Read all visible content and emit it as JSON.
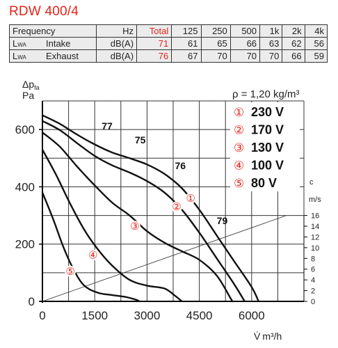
{
  "title": "RDW 400/4",
  "table": {
    "header": [
      "Frequency",
      "Hz",
      "Total",
      "125",
      "250",
      "500",
      "1k",
      "2k",
      "4k"
    ],
    "rows": [
      {
        "symbol": "L",
        "symbol_sub": "WA",
        "label": "Intake",
        "unit": "dB(A)",
        "total": "71",
        "values": [
          "61",
          "65",
          "66",
          "63",
          "62",
          "56"
        ]
      },
      {
        "symbol": "L",
        "symbol_sub": "WA",
        "label": "Exhaust",
        "unit": "dB(A)",
        "total": "76",
        "values": [
          "67",
          "70",
          "70",
          "70",
          "66",
          "59"
        ]
      }
    ]
  },
  "colors": {
    "accent": "#e2231a",
    "grid": "#333333",
    "curve": "#111111",
    "table_bg": "#ececec"
  },
  "chart_data": {
    "type": "line",
    "ylabel_symbol": "Δp",
    "ylabel_sub": "fa",
    "ylabel_unit": "Pa",
    "xlabel_symbol": "V̇",
    "xlabel_unit": "m³/h",
    "density": "ρ = 1,20 kg/m³",
    "xlim": [
      0,
      7500
    ],
    "ylim": [
      0,
      700
    ],
    "x_ticks": [
      0,
      1500,
      3000,
      4500,
      6000
    ],
    "y_ticks": [
      0,
      200,
      400,
      600
    ],
    "grid": true,
    "velocity_axis": {
      "label": "c",
      "unit": "m/s",
      "ticks": [
        0,
        2,
        4,
        6,
        8,
        10,
        12,
        14,
        16
      ]
    },
    "legend_position": "top-right",
    "series": [
      {
        "name": "230 V",
        "marker": "①",
        "points": [
          [
            0,
            650
          ],
          [
            500,
            620
          ],
          [
            1000,
            582
          ],
          [
            1500,
            548
          ],
          [
            2000,
            520
          ],
          [
            2500,
            500
          ],
          [
            3000,
            478
          ],
          [
            3500,
            445
          ],
          [
            4000,
            395
          ],
          [
            4500,
            320
          ],
          [
            5000,
            230
          ],
          [
            5500,
            140
          ],
          [
            6000,
            50
          ],
          [
            6200,
            0
          ]
        ]
      },
      {
        "name": "170 V",
        "marker": "②",
        "points": [
          [
            0,
            630
          ],
          [
            500,
            598
          ],
          [
            1000,
            552
          ],
          [
            1500,
            508
          ],
          [
            2000,
            475
          ],
          [
            2500,
            450
          ],
          [
            3000,
            420
          ],
          [
            3500,
            380
          ],
          [
            4000,
            320
          ],
          [
            4500,
            240
          ],
          [
            5000,
            150
          ],
          [
            5500,
            60
          ],
          [
            5800,
            0
          ]
        ]
      },
      {
        "name": "130 V",
        "marker": "③",
        "points": [
          [
            0,
            590
          ],
          [
            500,
            540
          ],
          [
            1000,
            470
          ],
          [
            1500,
            405
          ],
          [
            2000,
            345
          ],
          [
            2500,
            300
          ],
          [
            3000,
            245
          ],
          [
            3500,
            205
          ],
          [
            4000,
            175
          ],
          [
            4500,
            145
          ],
          [
            5000,
            90
          ],
          [
            5400,
            10
          ],
          [
            5450,
            0
          ]
        ]
      },
      {
        "name": "100 V",
        "marker": "④",
        "points": [
          [
            0,
            530
          ],
          [
            400,
            440
          ],
          [
            800,
            340
          ],
          [
            1200,
            250
          ],
          [
            1600,
            180
          ],
          [
            2000,
            125
          ],
          [
            2500,
            75
          ],
          [
            3000,
            55
          ],
          [
            3500,
            45
          ],
          [
            3800,
            20
          ],
          [
            4000,
            0
          ]
        ]
      },
      {
        "name": "80 V",
        "marker": "⑤",
        "points": [
          [
            0,
            380
          ],
          [
            300,
            290
          ],
          [
            600,
            190
          ],
          [
            900,
            110
          ],
          [
            1200,
            55
          ],
          [
            1600,
            30
          ],
          [
            2000,
            22
          ],
          [
            2400,
            15
          ],
          [
            2700,
            5
          ],
          [
            2780,
            0
          ]
        ]
      }
    ],
    "sound_labels": [
      {
        "text": "77",
        "x": 1700,
        "y": 600
      },
      {
        "text": "75",
        "x": 2650,
        "y": 552
      },
      {
        "text": "76",
        "x": 3800,
        "y": 462
      },
      {
        "text": "79",
        "x": 5000,
        "y": 270
      }
    ],
    "curve_markers": [
      {
        "text": "①",
        "x": 4250,
        "y": 360
      },
      {
        "text": "②",
        "x": 3850,
        "y": 330
      },
      {
        "text": "③",
        "x": 2650,
        "y": 262
      },
      {
        "text": "④",
        "x": 1450,
        "y": 162
      },
      {
        "text": "⑤",
        "x": 800,
        "y": 105
      }
    ],
    "system_line": {
      "points": [
        [
          0,
          0
        ],
        [
          7000,
          300
        ]
      ]
    }
  }
}
